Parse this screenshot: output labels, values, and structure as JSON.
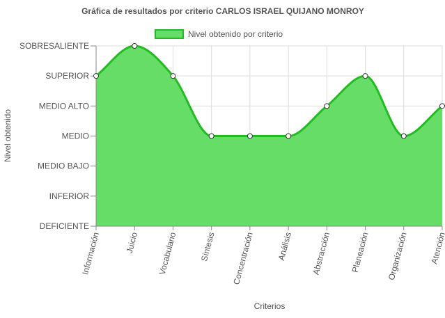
{
  "chart_data": {
    "type": "area",
    "title": "Gráfica de resultados por criterio CARLOS ISRAEL QUIJANO MONROY",
    "xlabel": "Criterios",
    "ylabel": "Nivel obtenido",
    "legend_position": "top",
    "grid": true,
    "levels": [
      "DEFICIENTE",
      "INFERIOR",
      "MEDIO BAJO",
      "MEDIO",
      "MEDIO ALTO",
      "SUPERIOR",
      "SOBRESALIENTE"
    ],
    "ylim": [
      0,
      6
    ],
    "categories": [
      "Información",
      "Juicio",
      "Vocabulario",
      "Síntesis",
      "Concentración",
      "Análisis",
      "Abstracción",
      "Planeación",
      "Organización",
      "Atención"
    ],
    "series": [
      {
        "name": "Nivel obtenido por criterio",
        "values": [
          5,
          6,
          5,
          3,
          3,
          3,
          4,
          5,
          3,
          4
        ],
        "value_labels": [
          "SUPERIOR",
          "SOBRESALIENTE",
          "SUPERIOR",
          "MEDIO",
          "MEDIO",
          "MEDIO",
          "MEDIO ALTO",
          "SUPERIOR",
          "MEDIO",
          "MEDIO ALTO"
        ]
      }
    ],
    "colors": {
      "fill": "#66dd66",
      "line": "#22bb22",
      "grid": "#dddddd",
      "axis": "#888888",
      "point_fill": "#ffffff",
      "point_stroke": "#333333"
    }
  }
}
